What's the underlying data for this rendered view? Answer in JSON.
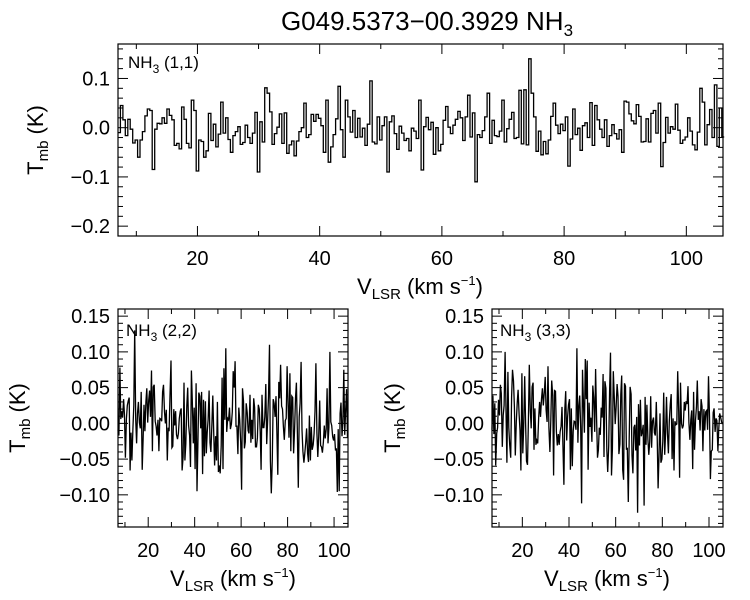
{
  "figure": {
    "title_source": "G049.5373−00.3929",
    "title_molecule": "NH",
    "title_molecule_sub": "3"
  },
  "chart_data": [
    {
      "id": "p11",
      "type": "line",
      "step": true,
      "panel_label_base": "NH",
      "panel_label_sub": "3",
      "panel_label_transition": " (1,1)",
      "xlim": [
        7,
        106
      ],
      "ylim": [
        -0.22,
        0.17
      ],
      "xticks": [
        20,
        40,
        60,
        80,
        100
      ],
      "xtick_labels": [
        "20",
        "40",
        "60",
        "80",
        "100"
      ],
      "yticks": [
        -0.2,
        -0.1,
        0.0,
        0.1
      ],
      "ytick_labels": [
        "−0.2",
        "−0.1",
        "0.0",
        "0.1"
      ],
      "xlabel_main": "V",
      "xlabel_sub": "LSR",
      "xlabel_units": " (km s",
      "xlabel_sup": "−1",
      "xlabel_close": ")",
      "ylabel_main": "T",
      "ylabel_sub": "mb",
      "ylabel_units": " (K)",
      "series": [
        {
          "name": "NH3 (1,1)",
          "x_start": 7,
          "x_step": 0.4,
          "values": []
        }
      ]
    },
    {
      "id": "p22",
      "type": "line",
      "step": false,
      "panel_label_base": "NH",
      "panel_label_sub": "3",
      "panel_label_transition": " (2,2)",
      "xlim": [
        7,
        106
      ],
      "ylim": [
        -0.145,
        0.16
      ],
      "xticks": [
        20,
        40,
        60,
        80,
        100
      ],
      "xtick_labels": [
        "20",
        "40",
        "60",
        "80",
        "100"
      ],
      "yticks": [
        -0.1,
        -0.05,
        0.0,
        0.05,
        0.1,
        0.15
      ],
      "ytick_labels": [
        "−0.10",
        "−0.05",
        "0.00",
        "0.05",
        "0.10",
        "0.15"
      ],
      "xlabel_main": "V",
      "xlabel_sub": "LSR",
      "xlabel_units": " (km s",
      "xlabel_sup": "−1",
      "xlabel_close": ")",
      "ylabel_main": "T",
      "ylabel_sub": "mb",
      "ylabel_units": " (K)",
      "series": [
        {
          "name": "NH3 (2,2)",
          "x_start": 7,
          "x_step": 0.4,
          "values": []
        }
      ]
    },
    {
      "id": "p33",
      "type": "line",
      "step": false,
      "panel_label_base": "NH",
      "panel_label_sub": "3",
      "panel_label_transition": " (3,3)",
      "xlim": [
        7,
        106
      ],
      "ylim": [
        -0.145,
        0.16
      ],
      "xticks": [
        20,
        40,
        60,
        80,
        100
      ],
      "xtick_labels": [
        "20",
        "40",
        "60",
        "80",
        "100"
      ],
      "yticks": [
        -0.1,
        -0.05,
        0.0,
        0.05,
        0.1,
        0.15
      ],
      "ytick_labels": [
        "−0.10",
        "−0.05",
        "0.00",
        "0.05",
        "0.10",
        "0.15"
      ],
      "xlabel_main": "V",
      "xlabel_sub": "LSR",
      "xlabel_units": " (km s",
      "xlabel_sup": "−1",
      "xlabel_close": ")",
      "ylabel_main": "T",
      "ylabel_sub": "mb",
      "ylabel_units": " (K)",
      "series": [
        {
          "name": "NH3 (3,3)",
          "x_start": 7,
          "x_step": 0.4,
          "values": []
        }
      ]
    }
  ]
}
